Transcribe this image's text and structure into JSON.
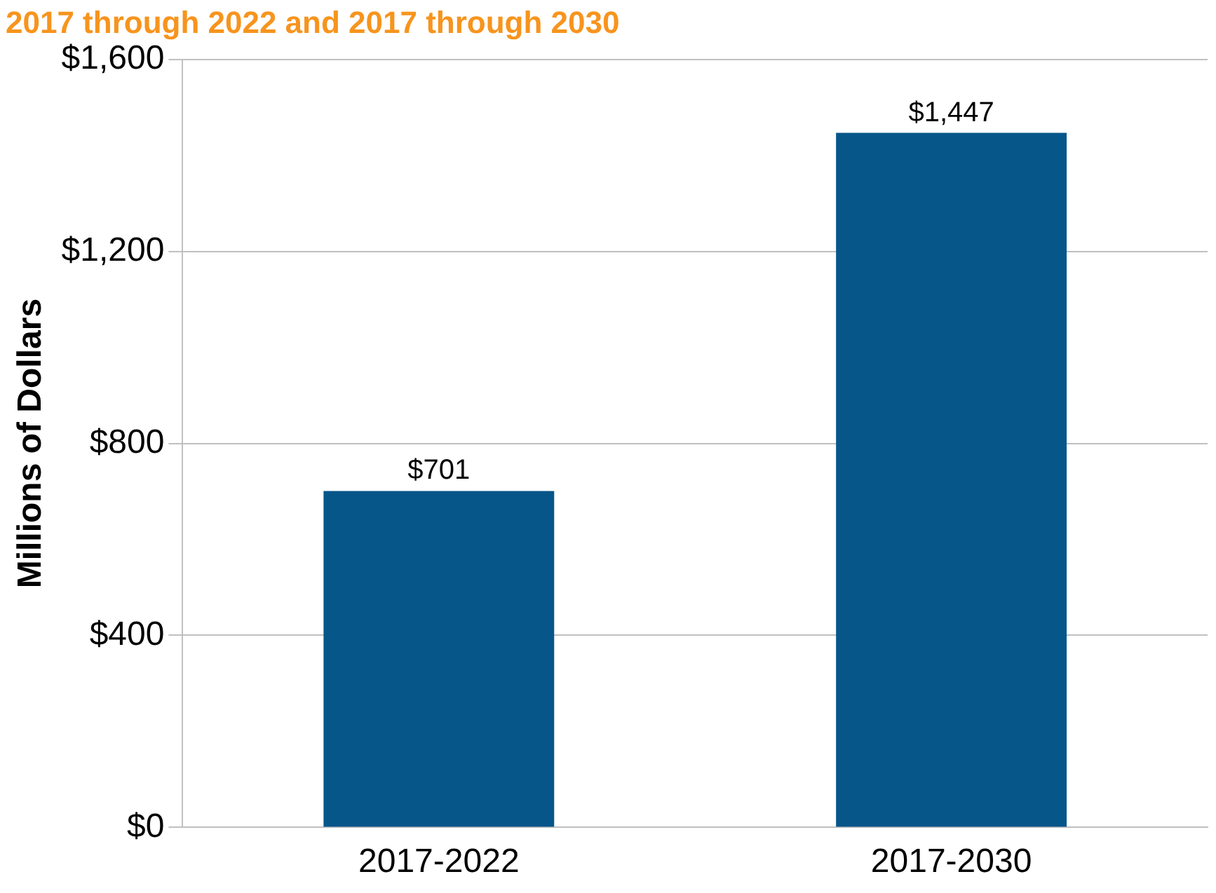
{
  "chart_data": {
    "type": "bar",
    "title": "2017 through 2022 and 2017 through 2030",
    "ylabel": "Millions of Dollars",
    "categories": [
      "2017-2022",
      "2017-2030"
    ],
    "values": [
      701,
      1447
    ],
    "color": "#06568a",
    "value_labels": [
      "$701",
      "$1,447"
    ],
    "ylim": [
      0,
      1600
    ],
    "yticks": [
      {
        "value": 0,
        "label": "$0"
      },
      {
        "value": 400,
        "label": "$400"
      },
      {
        "value": 800,
        "label": "$800"
      },
      {
        "value": 1200,
        "label": "$1,200"
      },
      {
        "value": 1600,
        "label": "$1,600"
      }
    ],
    "grid": "y",
    "legend": false
  }
}
